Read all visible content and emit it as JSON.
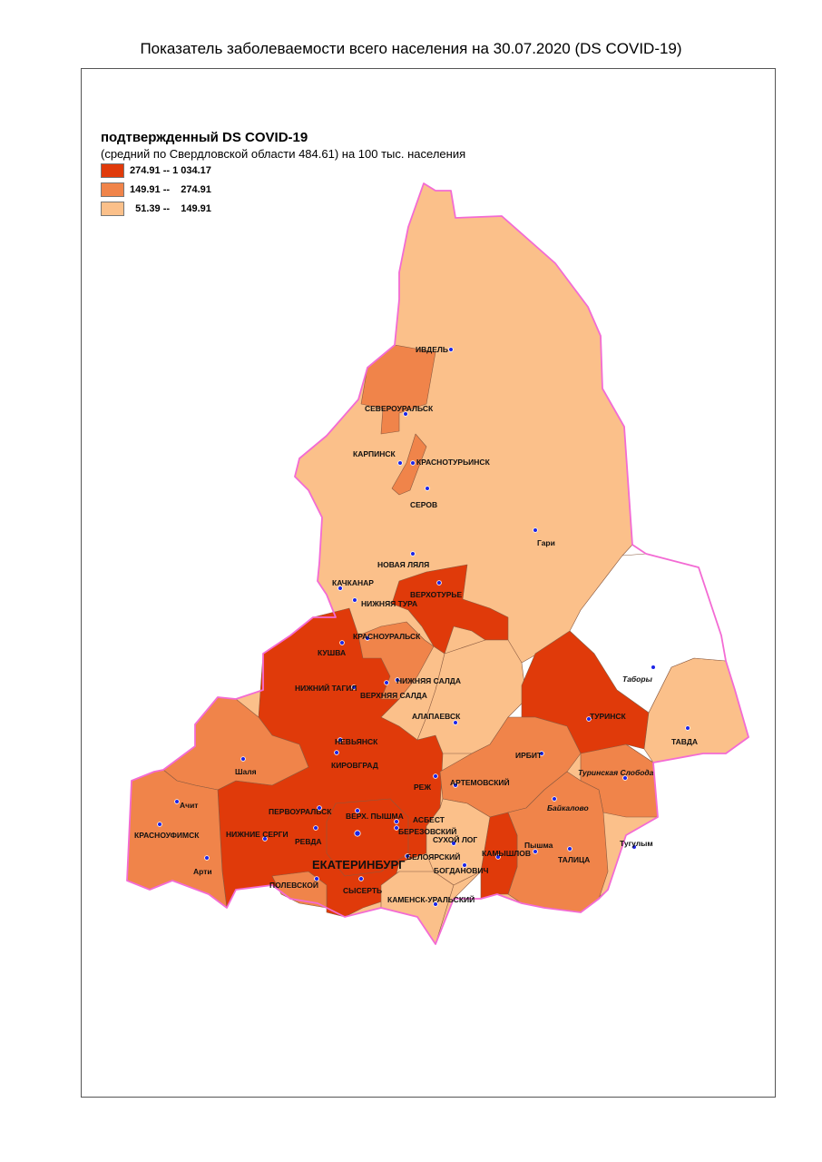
{
  "title": "Показатель заболеваемости всего населения  на 30.07.2020 (DS  COVID-19)",
  "legend": {
    "title": "подтвержденный DS  COVID-19",
    "subtitle": "(средний по Свердловской области 484.61) на 100 тыс. населения",
    "items": [
      {
        "label": "274.91 -- 1 034.17",
        "color": "#e03a0a"
      },
      {
        "label": "149.91 --    274.91",
        "color": "#f0844a"
      },
      {
        "label": "  51.39 --    149.91",
        "color": "#fbc08a"
      }
    ]
  },
  "colors": {
    "high": "#e03a0a",
    "mid": "#f0844a",
    "low": "#fbc08a",
    "nodata": "#ffffff",
    "border": "#f36bd4",
    "dot": "#1c24e6"
  },
  "cities": [
    {
      "name": "ИВДЕЛЬ",
      "italic": false,
      "big": false
    },
    {
      "name": "СЕВЕРОУРАЛЬСК",
      "italic": false,
      "big": false
    },
    {
      "name": "КАРПИНСК",
      "italic": false,
      "big": false
    },
    {
      "name": "КРАСНОТУРЬИНСК",
      "italic": false,
      "big": false
    },
    {
      "name": "СЕРОВ",
      "italic": false,
      "big": false
    },
    {
      "name": "Гари",
      "italic": false,
      "big": false
    },
    {
      "name": "НОВАЯ ЛЯЛЯ",
      "italic": false,
      "big": false
    },
    {
      "name": "КАЧКАНАР",
      "italic": false,
      "big": false
    },
    {
      "name": "ВЕРХОТУРЬЕ",
      "italic": false,
      "big": false
    },
    {
      "name": "НИЖНЯЯ ТУРА",
      "italic": false,
      "big": false
    },
    {
      "name": "КРАСНОУРАЛЬСК",
      "italic": false,
      "big": false
    },
    {
      "name": "КУШВА",
      "italic": false,
      "big": false
    },
    {
      "name": "Таборы",
      "italic": true,
      "big": false
    },
    {
      "name": "НИЖНЯЯ САЛДА",
      "italic": false,
      "big": false
    },
    {
      "name": "НИЖНИЙ ТАГИЛ",
      "italic": false,
      "big": false
    },
    {
      "name": "ВЕРХНЯЯ САЛДА",
      "italic": false,
      "big": false
    },
    {
      "name": "АЛАПАЕВСК",
      "italic": false,
      "big": false
    },
    {
      "name": "ТУРИНСК",
      "italic": false,
      "big": false
    },
    {
      "name": "ТАВДА",
      "italic": false,
      "big": false
    },
    {
      "name": "НЕВЬЯНСК",
      "italic": false,
      "big": false
    },
    {
      "name": "ИРБИТ",
      "italic": false,
      "big": false
    },
    {
      "name": "Шаля",
      "italic": false,
      "big": false
    },
    {
      "name": "КИРОВГРАД",
      "italic": false,
      "big": false
    },
    {
      "name": "Туринская Слобода",
      "italic": true,
      "big": false
    },
    {
      "name": "РЕЖ",
      "italic": false,
      "big": false
    },
    {
      "name": "АРТЕМОВСКИЙ",
      "italic": false,
      "big": false
    },
    {
      "name": "Ачит",
      "italic": false,
      "big": false
    },
    {
      "name": "Байкалово",
      "italic": true,
      "big": false
    },
    {
      "name": "ПЕРВОУРАЛЬСК",
      "italic": false,
      "big": false
    },
    {
      "name": "ВЕРХ. ПЫШМА",
      "italic": false,
      "big": false
    },
    {
      "name": "АСБЕСТ",
      "italic": false,
      "big": false
    },
    {
      "name": "БЕРЕЗОВСКИЙ",
      "italic": false,
      "big": false
    },
    {
      "name": "СУХОЙ ЛОГ",
      "italic": false,
      "big": false
    },
    {
      "name": "КРАСНОУФИМСК",
      "italic": false,
      "big": false
    },
    {
      "name": "НИЖНИЕ СЕРГИ",
      "italic": false,
      "big": false
    },
    {
      "name": "РЕВДА",
      "italic": false,
      "big": false
    },
    {
      "name": "КАМЫШЛОВ",
      "italic": false,
      "big": false
    },
    {
      "name": "Пышма",
      "italic": false,
      "big": false
    },
    {
      "name": "Тугулым",
      "italic": false,
      "big": false
    },
    {
      "name": "ЕКАТЕРИНБУРГ",
      "italic": false,
      "big": true
    },
    {
      "name": "БЕЛОЯРСКИЙ",
      "italic": false,
      "big": false
    },
    {
      "name": "ТАЛИЦА",
      "italic": false,
      "big": false
    },
    {
      "name": "Арти",
      "italic": false,
      "big": false
    },
    {
      "name": "БОГДАНОВИЧ",
      "italic": false,
      "big": false
    },
    {
      "name": "ПОЛЕВСКОЙ",
      "italic": false,
      "big": false
    },
    {
      "name": "СЫСЕРТЬ",
      "italic": false,
      "big": false
    },
    {
      "name": "КАМЕНСК-УРАЛЬСКИЙ",
      "italic": false,
      "big": false
    }
  ]
}
